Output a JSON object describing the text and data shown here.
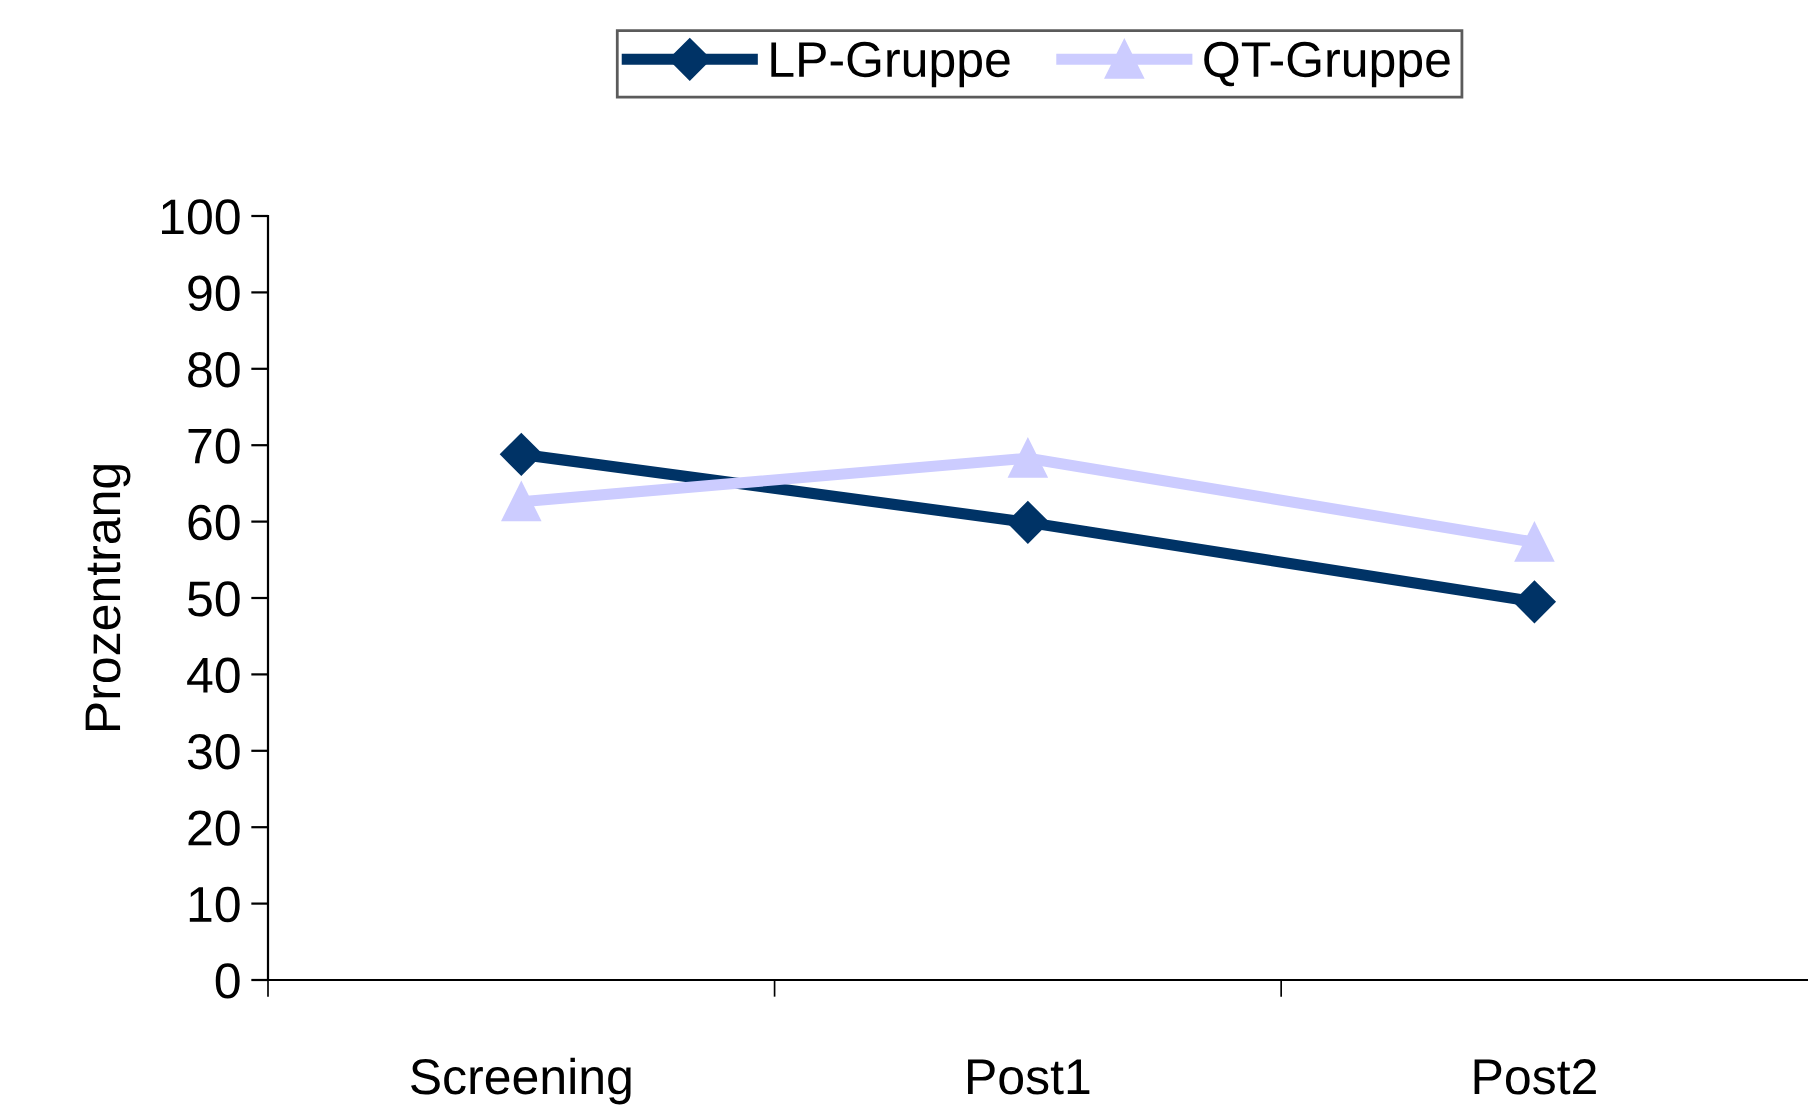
{
  "chart_data": {
    "type": "line",
    "ylabel": "Prozentrang",
    "categories": [
      "Screening",
      "Post1",
      "Post2"
    ],
    "series": [
      {
        "name": "LP-Gruppe",
        "color": "#003366",
        "marker": "diamond",
        "values": [
          68.8,
          59.9,
          49.5
        ]
      },
      {
        "name": "QT-Gruppe",
        "color": "#ccccff",
        "marker": "triangle",
        "values": [
          62.6,
          68.3,
          57.3
        ]
      }
    ],
    "ylim": [
      0,
      100
    ],
    "yticks": [
      0,
      10,
      20,
      30,
      40,
      50,
      60,
      70,
      80,
      90,
      100
    ],
    "grid": false,
    "legend": "top"
  }
}
